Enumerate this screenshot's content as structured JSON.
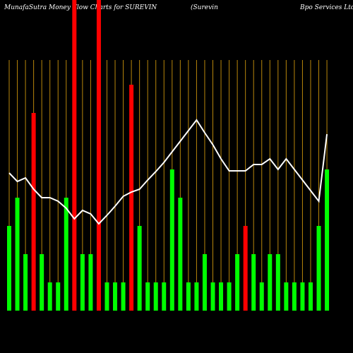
{
  "chart_data": {
    "type": "bar",
    "title_parts": [
      "MunafaSutra  Money Flow  Charts for SUREVIN",
      "(Surevin",
      "Bpo  Services Ltd"
    ],
    "categories": [
      null,
      null,
      null,
      null,
      null,
      null,
      null,
      null,
      null,
      null,
      null,
      null,
      null,
      null,
      null,
      null,
      null,
      null,
      null,
      null,
      null,
      null,
      null,
      null,
      null,
      null,
      null,
      null,
      null,
      null,
      null,
      null,
      null,
      null,
      null,
      null,
      null,
      null,
      null,
      null
    ],
    "series": [
      {
        "color": "#00ff00",
        "red_color": "#ff0000",
        "values": [
          3,
          4,
          2,
          7,
          2,
          1,
          1,
          4,
          12,
          2,
          2,
          12,
          1,
          1,
          1,
          8,
          3,
          1,
          1,
          1,
          5,
          4,
          1,
          1,
          2,
          1,
          1,
          1,
          2,
          3,
          2,
          1,
          2,
          2,
          1,
          1,
          1,
          1,
          3,
          5
        ],
        "down": [
          false,
          false,
          false,
          true,
          false,
          false,
          false,
          false,
          true,
          false,
          false,
          true,
          false,
          false,
          false,
          true,
          false,
          false,
          false,
          false,
          false,
          false,
          false,
          false,
          false,
          false,
          false,
          false,
          false,
          true,
          false,
          false,
          false,
          false,
          false,
          false,
          false,
          false,
          false,
          false
        ]
      },
      {
        "type": "line",
        "axis": "y2",
        "color": "#ffffff",
        "values": [
          195,
          183,
          188,
          172,
          160,
          160,
          155,
          145,
          130,
          142,
          137,
          123,
          135,
          148,
          162,
          168,
          172,
          185,
          197,
          210,
          225,
          240,
          255,
          270,
          252,
          235,
          215,
          198,
          198,
          198,
          207,
          207,
          215,
          200,
          215,
          200,
          185,
          170,
          155,
          250
        ]
      }
    ],
    "ylim": [
      0,
      11
    ],
    "y2lim": [
      0,
      440
    ],
    "grid_color": "#b8860b"
  }
}
